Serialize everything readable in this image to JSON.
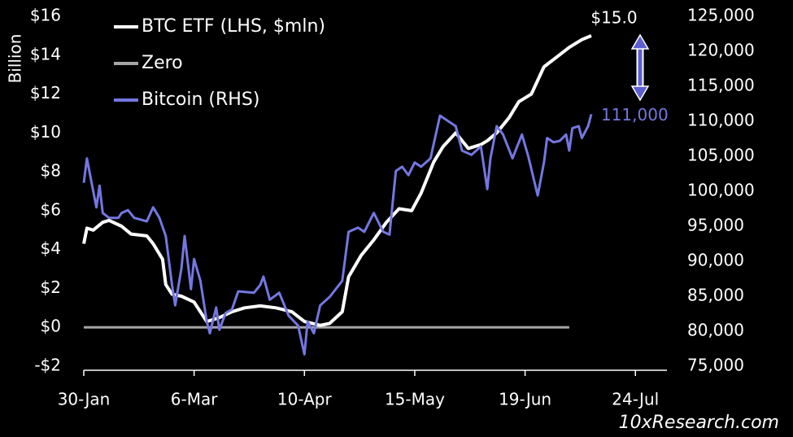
{
  "chart_data": {
    "type": "line",
    "ylabel": "Billion",
    "xlim": [
      "30-Jan",
      "3-Aug"
    ],
    "xticks": [
      "30-Jan",
      "6-Mar",
      "10-Apr",
      "15-May",
      "19-Jun",
      "24-Jul"
    ],
    "ylim": [
      -2,
      16
    ],
    "yticks": [
      {
        "value": -2,
        "label": "-$2"
      },
      {
        "value": 0,
        "label": "$0"
      },
      {
        "value": 2,
        "label": "$2"
      },
      {
        "value": 4,
        "label": "$4"
      },
      {
        "value": 6,
        "label": "$6"
      },
      {
        "value": 8,
        "label": "$8"
      },
      {
        "value": 10,
        "label": "$10"
      },
      {
        "value": 12,
        "label": "$12"
      },
      {
        "value": 14,
        "label": "$14"
      },
      {
        "value": 16,
        "label": "$16"
      }
    ],
    "y2lim": [
      75000,
      125000
    ],
    "y2ticks": [
      {
        "value": 75000,
        "label": "75,000"
      },
      {
        "value": 80000,
        "label": "80,000"
      },
      {
        "value": 85000,
        "label": "85,000"
      },
      {
        "value": 90000,
        "label": "90,000"
      },
      {
        "value": 95000,
        "label": "95,000"
      },
      {
        "value": 100000,
        "label": "100,000"
      },
      {
        "value": 105000,
        "label": "105,000"
      },
      {
        "value": 110000,
        "label": "110,000"
      },
      {
        "value": 115000,
        "label": "115,000"
      },
      {
        "value": 120000,
        "label": "120,000"
      },
      {
        "value": 125000,
        "label": "125,000"
      }
    ],
    "legend": "top-left",
    "series": [
      {
        "name": "BTC ETF (LHS, $mln)",
        "color": "#ffffff",
        "axis": "y",
        "x": [
          "30-Jan",
          "31-Jan",
          "2-Feb",
          "5-Feb",
          "7-Feb",
          "11-Feb",
          "14-Feb",
          "19-Feb",
          "21-Feb",
          "24-Feb",
          "25-Feb",
          "27-Feb",
          "2-Mar",
          "6-Mar",
          "10-Mar",
          "14-Mar",
          "18-Mar",
          "22-Mar",
          "27-Mar",
          "1-Apr",
          "6-Apr",
          "10-Apr",
          "15-Apr",
          "18-Apr",
          "22-Apr",
          "24-Apr",
          "28-Apr",
          "2-May",
          "6-May",
          "10-May",
          "14-May",
          "17-May",
          "21-May",
          "24-May",
          "28-May",
          "1-Jun",
          "5-Jun",
          "7-Jun",
          "10-Jun",
          "14-Jun",
          "17-Jun",
          "21-Jun",
          "25-Jun",
          "29-Jun",
          "3-Jul",
          "7-Jul",
          "10-Jul"
        ],
        "values": [
          4.3,
          5.1,
          5.0,
          5.4,
          5.5,
          5.2,
          4.8,
          4.7,
          4.3,
          3.5,
          2.2,
          1.7,
          1.6,
          1.3,
          0.3,
          0.5,
          0.8,
          1.0,
          1.1,
          1.0,
          0.8,
          0.3,
          0.1,
          0.2,
          0.8,
          2.6,
          3.7,
          4.5,
          5.4,
          6.1,
          6.0,
          6.9,
          8.5,
          9.3,
          10.0,
          9.2,
          9.4,
          9.6,
          10.0,
          10.8,
          11.6,
          12.0,
          13.4,
          13.9,
          14.4,
          14.8,
          15.0
        ]
      },
      {
        "name": "Zero",
        "color": "#a6a6a6",
        "axis": "y",
        "x": [
          "30-Jan",
          "3-Jul"
        ],
        "values": [
          0,
          0
        ]
      },
      {
        "name": "Bitcoin (RHS)",
        "color": "#7477e0",
        "axis": "y2",
        "x": [
          "30-Jan",
          "31-Jan",
          "1-Feb",
          "3-Feb",
          "4-Feb",
          "5-Feb",
          "7-Feb",
          "10-Feb",
          "11-Feb",
          "13-Feb",
          "15-Feb",
          "19-Feb",
          "21-Feb",
          "23-Feb",
          "25-Feb",
          "27-Feb",
          "28-Feb",
          "2-Mar",
          "3-Mar",
          "5-Mar",
          "6-Mar",
          "8-Mar",
          "10-Mar",
          "11-Mar",
          "13-Mar",
          "14-Mar",
          "16-Mar",
          "18-Mar",
          "20-Mar",
          "25-Mar",
          "27-Mar",
          "28-Mar",
          "30-Mar",
          "2-Apr",
          "5-Apr",
          "8-Apr",
          "10-Apr",
          "11-Apr",
          "13-Apr",
          "15-Apr",
          "18-Apr",
          "22-Apr",
          "24-Apr",
          "27-Apr",
          "29-Apr",
          "2-May",
          "5-May",
          "7-May",
          "9-May",
          "11-May",
          "13-May",
          "15-May",
          "17-May",
          "20-May",
          "23-May",
          "26-May",
          "28-May",
          "30-May",
          "2-Jun",
          "5-Jun",
          "7-Jun",
          "8-Jun",
          "10-Jun",
          "12-Jun",
          "15-Jun",
          "18-Jun",
          "20-Jun",
          "23-Jun",
          "25-Jun",
          "26-Jun",
          "28-Jun",
          "30-Jun",
          "2-Jul",
          "3-Jul",
          "4-Jul",
          "6-Jul",
          "7-Jul",
          "9-Jul",
          "10-Jul"
        ],
        "values": [
          101200,
          104700,
          102300,
          97700,
          100800,
          96900,
          96200,
          96200,
          96900,
          97300,
          96200,
          95700,
          97700,
          96200,
          93600,
          86600,
          83700,
          89000,
          93600,
          86000,
          90300,
          87200,
          81400,
          79700,
          83400,
          80200,
          82600,
          83100,
          85700,
          85500,
          86600,
          87800,
          84500,
          85500,
          82200,
          80800,
          76700,
          81400,
          79700,
          83700,
          84900,
          87200,
          94200,
          94800,
          94200,
          96900,
          94200,
          93800,
          102900,
          103500,
          102300,
          104100,
          103500,
          104700,
          110800,
          109900,
          109300,
          105800,
          105200,
          106400,
          100300,
          104700,
          109300,
          108100,
          104700,
          108100,
          105000,
          99400,
          104100,
          107600,
          107000,
          107200,
          108100,
          105800,
          109000,
          109300,
          107600,
          109300,
          111000
        ]
      }
    ],
    "annotations": [
      {
        "text": "$15.0",
        "x": "10-Jul",
        "y": 15.0,
        "axis": "y"
      },
      {
        "text": "111,000",
        "x": "10-Jul",
        "y": 111000,
        "axis": "y2"
      }
    ],
    "watermark": "10xResearch.com"
  }
}
